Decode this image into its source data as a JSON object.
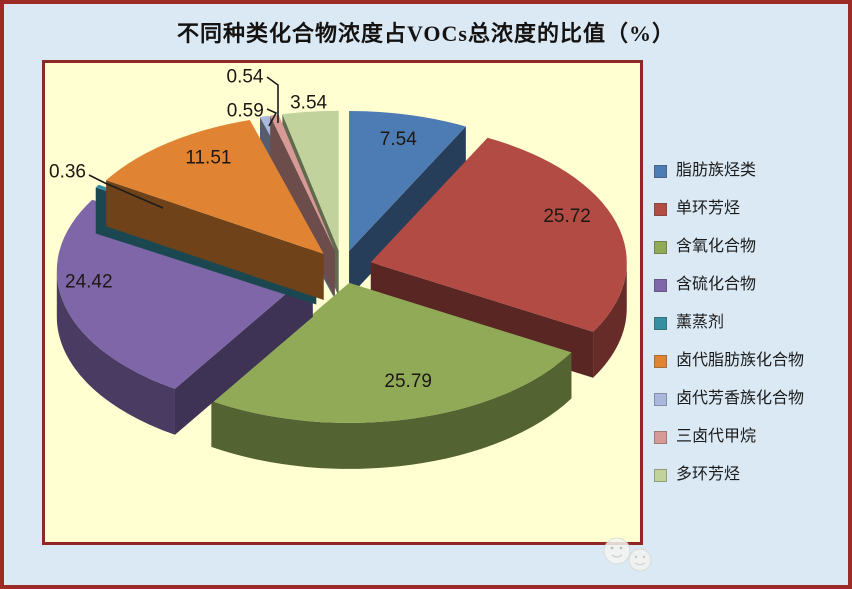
{
  "page": {
    "title": "不同种类化合物浓度占VOCs总浓度的比值（%）"
  },
  "theme": {
    "outer_background": "#dae9f4",
    "outer_border": "#9c2a27",
    "plot_background": "#ffffd2",
    "plot_border": "#8f2825",
    "title_color": "#151312",
    "value_label_color": "#1d1713",
    "leader_line_color": "#1c1c1c",
    "legend_text_color": "#1b1b1b"
  },
  "chart_data": {
    "type": "pie",
    "style": "3d-exploded",
    "title": "不同种类化合物浓度占VOCs总浓度的比值（%）",
    "unit": "%",
    "start_angle_deg": 0,
    "direction": "clockwise",
    "legend_position": "right",
    "plot_background": "#ffffd2",
    "categories": [
      "脂肪族烃类",
      "单环芳烃",
      "含氧化合物",
      "含硫化合物",
      "薰蒸剂",
      "卤代脂肪族化合物",
      "卤代芳香族化合物",
      "三卤代甲烷",
      "多环芳烃"
    ],
    "values": [
      7.54,
      25.72,
      25.79,
      24.42,
      0.36,
      11.51,
      0.59,
      0.54,
      3.54
    ],
    "labels": [
      "7.54",
      "25.72",
      "25.79",
      "24.42",
      "0.36",
      "11.51",
      "0.59",
      "0.54",
      "3.54"
    ],
    "colors": [
      "#4d7cb4",
      "#b34b45",
      "#90aa57",
      "#7e66a9",
      "#368fa0",
      "#e08434",
      "#a9b8dc",
      "#d89a96",
      "#c2d29c"
    ],
    "label_placement": [
      "inside",
      "inside",
      "inside",
      "inside",
      "outside",
      "inside",
      "outside",
      "outside",
      "outside"
    ],
    "leader_lines": [
      false,
      false,
      false,
      false,
      true,
      false,
      true,
      true,
      false
    ]
  },
  "watermark": {
    "icon": "smiley-faces-watermark"
  }
}
